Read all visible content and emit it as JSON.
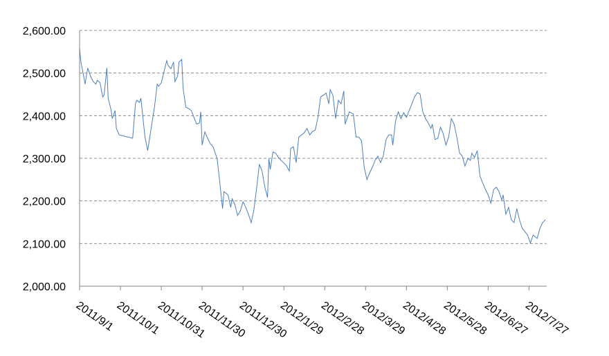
{
  "chart_data": {
    "type": "line",
    "x": [
      "2011/9/1",
      "2011/9/2",
      "2011/9/4",
      "2011/9/5",
      "2011/9/7",
      "2011/9/9",
      "2011/9/11",
      "2011/9/13",
      "2011/9/14",
      "2011/9/16",
      "2011/9/18",
      "2011/9/19",
      "2011/9/21",
      "2011/9/22",
      "2011/9/24",
      "2011/9/25",
      "2011/9/27",
      "2011/9/28",
      "2011/9/30",
      "2011/10/10",
      "2011/10/12",
      "2011/10/13",
      "2011/10/15",
      "2011/10/16",
      "2011/10/18",
      "2011/10/19",
      "2011/10/21",
      "2011/10/22",
      "2011/10/24",
      "2011/10/26",
      "2011/10/28",
      "2011/10/29",
      "2011/10/31",
      "2011/11/2",
      "2011/11/4",
      "2011/11/5",
      "2011/11/7",
      "2011/11/9",
      "2011/11/10",
      "2011/11/12",
      "2011/11/13",
      "2011/11/15",
      "2011/11/16",
      "2011/11/18",
      "2011/11/20",
      "2011/11/22",
      "2011/11/24",
      "2011/11/26",
      "2011/11/28",
      "2011/11/29",
      "2011/11/30",
      "2011/12/2",
      "2011/12/4",
      "2011/12/6",
      "2011/12/8",
      "2011/12/11",
      "2011/12/13",
      "2011/12/15",
      "2011/12/16",
      "2011/12/19",
      "2011/12/21",
      "2011/12/22",
      "2011/12/24",
      "2011/12/26",
      "2011/12/28",
      "2011/12/30",
      "2012/1/1",
      "2012/1/3",
      "2012/1/5",
      "2012/1/7",
      "2012/1/9",
      "2012/1/11",
      "2012/1/13",
      "2012/1/15",
      "2012/1/17",
      "2012/1/18",
      "2012/1/19",
      "2012/1/21",
      "2012/1/23",
      "2012/1/25",
      "2012/1/27",
      "2012/1/29",
      "2012/1/31",
      "2012/2/2",
      "2012/2/3",
      "2012/2/5",
      "2012/2/7",
      "2012/2/9",
      "2012/2/11",
      "2012/2/13",
      "2012/2/15",
      "2012/2/17",
      "2012/2/19",
      "2012/2/21",
      "2012/2/23",
      "2012/2/25",
      "2012/2/27",
      "2012/2/29",
      "2012/3/2",
      "2012/3/3",
      "2012/3/5",
      "2012/3/7",
      "2012/3/9",
      "2012/3/11",
      "2012/3/13",
      "2012/3/14",
      "2012/3/16",
      "2012/3/17",
      "2012/3/20",
      "2012/3/22",
      "2012/3/24",
      "2012/3/26",
      "2012/3/28",
      "2012/3/30",
      "2012/4/1",
      "2012/4/3",
      "2012/4/5",
      "2012/4/7",
      "2012/4/9",
      "2012/4/11",
      "2012/4/13",
      "2012/4/15",
      "2012/4/17",
      "2012/4/18",
      "2012/4/20",
      "2012/4/22",
      "2012/4/24",
      "2012/4/26",
      "2012/4/28",
      "2012/4/30",
      "2012/5/2",
      "2012/5/4",
      "2012/5/6",
      "2012/5/8",
      "2012/5/10",
      "2012/5/12",
      "2012/5/14",
      "2012/5/16",
      "2012/5/17",
      "2012/5/19",
      "2012/5/21",
      "2012/5/23",
      "2012/5/25",
      "2012/5/27",
      "2012/5/29",
      "2012/5/31",
      "2012/6/2",
      "2012/6/4",
      "2012/6/6",
      "2012/6/8",
      "2012/6/10",
      "2012/6/12",
      "2012/6/14",
      "2012/6/15",
      "2012/6/17",
      "2012/6/19",
      "2012/6/21",
      "2012/6/23",
      "2012/6/25",
      "2012/6/27",
      "2012/6/29",
      "2012/7/1",
      "2012/7/3",
      "2012/7/5",
      "2012/7/7",
      "2012/7/8",
      "2012/7/10",
      "2012/7/12",
      "2012/7/14",
      "2012/7/16",
      "2012/7/18",
      "2012/7/20",
      "2012/7/22",
      "2012/7/24",
      "2012/7/26",
      "2012/7/28",
      "2012/7/30",
      "2012/8/2",
      "2012/8/4",
      "2012/8/6",
      "2012/8/8"
    ],
    "series": [
      {
        "color": "#4a7ebb",
        "values": [
          2558,
          2525,
          2493,
          2474,
          2512,
          2493,
          2480,
          2474,
          2483,
          2477,
          2444,
          2448,
          2512,
          2441,
          2415,
          2393,
          2412,
          2371,
          2355,
          2347,
          2428,
          2436,
          2431,
          2441,
          2380,
          2350,
          2318,
          2339,
          2380,
          2420,
          2474,
          2469,
          2477,
          2503,
          2529,
          2518,
          2510,
          2526,
          2480,
          2493,
          2526,
          2532,
          2464,
          2420,
          2417,
          2412,
          2396,
          2380,
          2383,
          2409,
          2331,
          2362,
          2347,
          2334,
          2327,
          2299,
          2242,
          2182,
          2222,
          2214,
          2185,
          2205,
          2192,
          2166,
          2176,
          2198,
          2185,
          2169,
          2149,
          2179,
          2230,
          2286,
          2270,
          2233,
          2208,
          2299,
          2274,
          2315,
          2312,
          2302,
          2295,
          2289,
          2282,
          2270,
          2323,
          2327,
          2290,
          2350,
          2355,
          2360,
          2370,
          2355,
          2363,
          2366,
          2396,
          2444,
          2448,
          2453,
          2428,
          2461,
          2448,
          2393,
          2436,
          2428,
          2458,
          2380,
          2399,
          2409,
          2404,
          2350,
          2350,
          2341,
          2279,
          2250,
          2266,
          2279,
          2295,
          2305,
          2290,
          2305,
          2344,
          2355,
          2355,
          2331,
          2388,
          2409,
          2393,
          2407,
          2396,
          2412,
          2428,
          2444,
          2454,
          2451,
          2409,
          2393,
          2383,
          2370,
          2380,
          2344,
          2347,
          2373,
          2358,
          2331,
          2350,
          2393,
          2380,
          2350,
          2312,
          2305,
          2282,
          2299,
          2295,
          2312,
          2302,
          2318,
          2258,
          2242,
          2227,
          2214,
          2195,
          2227,
          2232,
          2222,
          2202,
          2214,
          2169,
          2185,
          2156,
          2149,
          2182,
          2156,
          2136,
          2128,
          2120,
          2101,
          2120,
          2112,
          2136,
          2149,
          2156
        ]
      }
    ],
    "xlim": [
      "2011/9/1",
      "2012/8/9"
    ],
    "xticks": [
      "2011/9/1",
      "2011/10/1",
      "2011/10/31",
      "2011/11/30",
      "2011/12/30",
      "2012/1/29",
      "2012/2/28",
      "2012/3/29",
      "2012/4/28",
      "2012/5/28",
      "2012/6/27",
      "2012/7/27"
    ],
    "ylim": [
      2000,
      2600
    ],
    "yticks": [
      {
        "value": 2000,
        "label": "2,000.00"
      },
      {
        "value": 2100,
        "label": "2,100.00"
      },
      {
        "value": 2200,
        "label": "2,200.00"
      },
      {
        "value": 2300,
        "label": "2,300.00"
      },
      {
        "value": 2400,
        "label": "2,400.00"
      },
      {
        "value": 2500,
        "label": "2,500.00"
      },
      {
        "value": 2600,
        "label": "2,600.00"
      }
    ],
    "grid": true
  }
}
